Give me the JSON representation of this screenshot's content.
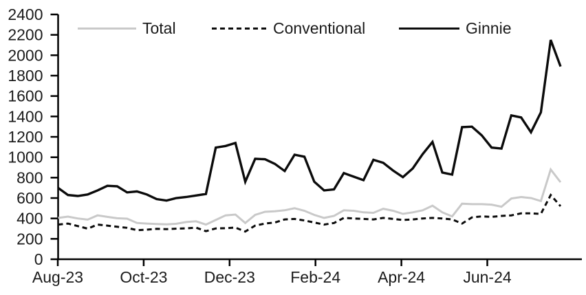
{
  "chart_data": {
    "type": "line",
    "title": "",
    "x_axis": {
      "tick_labels": [
        "Aug-23",
        "Oct-23",
        "Dec-23",
        "Feb-24",
        "Apr-24",
        "Jun-24"
      ],
      "frequency": "weekly"
    },
    "y_axis": {
      "min": 0,
      "max": 2400,
      "step": 200
    },
    "grid": "off",
    "legend_position": "top-inside",
    "series": [
      {
        "name": "Total",
        "style": "solid",
        "color": "#c9c9c9",
        "values": [
          405,
          418,
          400,
          388,
          430,
          415,
          402,
          398,
          356,
          350,
          345,
          342,
          348,
          365,
          372,
          340,
          385,
          430,
          438,
          355,
          435,
          465,
          470,
          480,
          500,
          475,
          435,
          405,
          425,
          480,
          475,
          460,
          455,
          495,
          475,
          445,
          460,
          480,
          525,
          460,
          420,
          545,
          540,
          540,
          535,
          515,
          595,
          610,
          600,
          570,
          880,
          755
        ]
      },
      {
        "name": "Conventional",
        "style": "dashed",
        "color": "#0b0b0b",
        "values": [
          340,
          350,
          325,
          300,
          340,
          330,
          318,
          308,
          285,
          290,
          298,
          295,
          300,
          303,
          310,
          275,
          302,
          305,
          310,
          272,
          330,
          350,
          360,
          390,
          395,
          380,
          360,
          340,
          355,
          405,
          400,
          395,
          390,
          405,
          395,
          385,
          390,
          400,
          405,
          400,
          390,
          350,
          410,
          420,
          415,
          425,
          430,
          450,
          450,
          445,
          630,
          520
        ]
      },
      {
        "name": "Ginnie",
        "style": "solid",
        "color": "#0b0b0b",
        "values": [
          700,
          630,
          620,
          635,
          675,
          720,
          715,
          655,
          665,
          635,
          590,
          575,
          600,
          610,
          625,
          640,
          1095,
          1110,
          1140,
          760,
          985,
          980,
          935,
          865,
          1025,
          1005,
          760,
          675,
          685,
          845,
          810,
          775,
          975,
          945,
          870,
          805,
          890,
          1030,
          1150,
          850,
          830,
          1295,
          1300,
          1215,
          1095,
          1085,
          1410,
          1390,
          1245,
          1440,
          2150,
          1890
        ]
      }
    ]
  },
  "legend": {
    "items": [
      {
        "label": "Total"
      },
      {
        "label": "Conventional"
      },
      {
        "label": "Ginnie"
      }
    ]
  }
}
